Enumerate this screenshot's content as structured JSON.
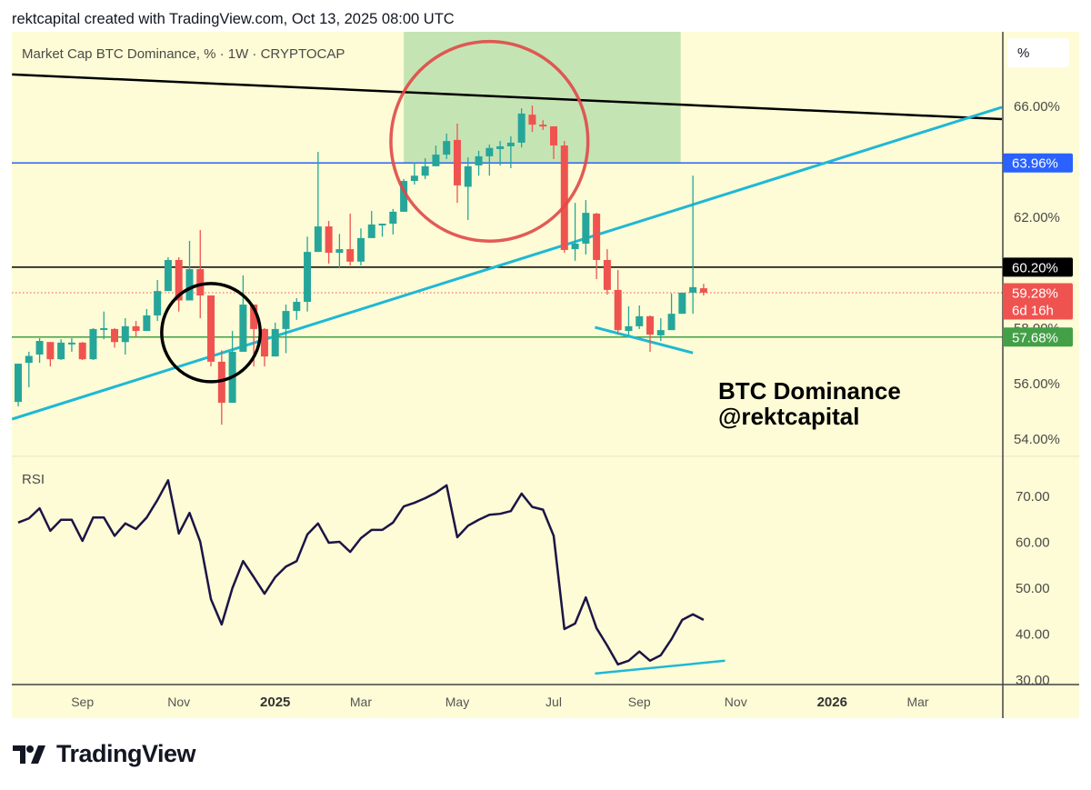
{
  "header": {
    "caption": "rektcapital created with TradingView.com, Oct 13, 2025 08:00 UTC"
  },
  "chart_title": "Market Cap BTC Dominance, % · 1W · CRYPTOCAP",
  "scale_mode_button": "%",
  "annotation": {
    "line1": "BTC Dominance",
    "line2": "@rektcapital"
  },
  "logo": {
    "text": "TradingView"
  },
  "colors": {
    "background": "#fdfcd6",
    "up": "#26a69a",
    "down": "#ef5350",
    "rsi_line": "#1c1446",
    "trendline_cyan": "#1fb8d4",
    "highlight_box": "#c5e4b4",
    "circle_red": "#e04848",
    "circle_black": "#000000",
    "level_blue": "#2962ff",
    "level_black": "#000000",
    "level_green": "#43a047"
  },
  "chart_data": [
    {
      "type": "candlestick",
      "title": "Market Cap BTC Dominance, % · 1W · CRYPTOCAP",
      "interval": "1W",
      "ylabel": "%",
      "ylim": [
        53.4,
        67.6
      ],
      "y_ticks": [
        "66.00%",
        "62.00%",
        "58.00%",
        "56.00%",
        "54.00%"
      ],
      "y_tick_values": [
        66,
        62,
        58,
        56,
        54
      ],
      "x_ticks": [
        {
          "date": "2024-09-02",
          "label": "Sep",
          "bold": false
        },
        {
          "date": "2024-11-04",
          "label": "Nov",
          "bold": false
        },
        {
          "date": "2025-01-06",
          "label": "2025",
          "bold": true
        },
        {
          "date": "2025-03-03",
          "label": "Mar",
          "bold": false
        },
        {
          "date": "2025-05-05",
          "label": "May",
          "bold": false
        },
        {
          "date": "2025-07-07",
          "label": "Jul",
          "bold": false
        },
        {
          "date": "2025-09-01",
          "label": "Sep",
          "bold": false
        },
        {
          "date": "2025-11-03",
          "label": "Nov",
          "bold": false
        },
        {
          "date": "2026-01-05",
          "label": "2026",
          "bold": true
        },
        {
          "date": "2026-03-02",
          "label": "Mar",
          "bold": false
        }
      ],
      "ohlc_columns": [
        "date",
        "open",
        "high",
        "low",
        "close"
      ],
      "ohlc": [
        [
          "2024-07-22",
          55.34,
          56.72,
          55.18,
          56.72
        ],
        [
          "2024-07-29",
          56.75,
          57.15,
          55.87,
          57.0
        ],
        [
          "2024-08-05",
          57.05,
          57.64,
          56.75,
          57.54
        ],
        [
          "2024-08-12",
          57.5,
          57.5,
          56.62,
          56.88
        ],
        [
          "2024-08-19",
          56.88,
          57.6,
          56.85,
          57.48
        ],
        [
          "2024-08-26",
          57.45,
          57.64,
          57.15,
          57.48
        ],
        [
          "2024-09-02",
          57.48,
          57.5,
          56.85,
          56.88
        ],
        [
          "2024-09-09",
          56.88,
          58.0,
          56.85,
          57.97
        ],
        [
          "2024-09-16",
          57.98,
          58.6,
          57.6,
          58.0
        ],
        [
          "2024-09-23",
          57.97,
          58.0,
          57.3,
          57.5
        ],
        [
          "2024-09-30",
          57.5,
          58.36,
          57.05,
          58.07
        ],
        [
          "2024-10-07",
          58.07,
          58.26,
          57.7,
          57.9
        ],
        [
          "2024-10-14",
          57.9,
          58.69,
          57.9,
          58.46
        ],
        [
          "2024-10-21",
          58.46,
          59.74,
          58.26,
          59.34
        ],
        [
          "2024-10-28",
          59.34,
          60.56,
          59.34,
          60.46
        ],
        [
          "2024-11-04",
          60.46,
          60.56,
          58.6,
          59.0
        ],
        [
          "2024-11-11",
          59.0,
          61.15,
          59.0,
          60.13
        ],
        [
          "2024-11-18",
          60.13,
          61.54,
          58.36,
          59.18
        ],
        [
          "2024-11-25",
          59.18,
          59.18,
          56.62,
          56.79
        ],
        [
          "2024-12-02",
          56.79,
          57.2,
          54.52,
          55.31
        ],
        [
          "2024-12-09",
          55.31,
          57.9,
          55.31,
          57.15
        ],
        [
          "2024-12-16",
          57.15,
          59.9,
          57.15,
          58.85
        ],
        [
          "2024-12-23",
          58.85,
          58.85,
          56.62,
          57.97
        ],
        [
          "2024-12-30",
          57.97,
          58.0,
          56.62,
          56.98
        ],
        [
          "2025-01-06",
          56.98,
          58.2,
          56.98,
          57.97
        ],
        [
          "2025-01-13",
          57.97,
          58.85,
          57.1,
          58.62
        ],
        [
          "2025-01-20",
          58.62,
          59.08,
          58.3,
          58.95
        ],
        [
          "2025-01-27",
          58.95,
          61.3,
          58.6,
          60.75
        ],
        [
          "2025-02-03",
          60.75,
          64.36,
          60.75,
          61.67
        ],
        [
          "2025-02-10",
          61.67,
          61.87,
          60.33,
          60.72
        ],
        [
          "2025-02-17",
          60.72,
          61.4,
          60.16,
          60.85
        ],
        [
          "2025-02-24",
          60.85,
          62.13,
          60.26,
          60.4
        ],
        [
          "2025-03-03",
          60.4,
          61.6,
          60.26,
          61.25
        ],
        [
          "2025-03-10",
          61.25,
          62.23,
          61.25,
          61.74
        ],
        [
          "2025-03-17",
          61.74,
          61.77,
          61.3,
          61.77
        ],
        [
          "2025-03-24",
          61.77,
          62.3,
          61.38,
          62.2
        ],
        [
          "2025-03-31",
          62.2,
          63.38,
          62.2,
          63.31
        ],
        [
          "2025-04-07",
          63.31,
          63.97,
          63.18,
          63.5
        ],
        [
          "2025-04-14",
          63.5,
          64.13,
          63.38,
          63.84
        ],
        [
          "2025-04-21",
          63.84,
          64.59,
          63.84,
          64.26
        ],
        [
          "2025-04-28",
          64.26,
          65.02,
          64.1,
          64.75
        ],
        [
          "2025-05-05",
          64.79,
          65.38,
          62.52,
          63.15
        ],
        [
          "2025-05-12",
          63.1,
          64.16,
          61.9,
          63.84
        ],
        [
          "2025-05-19",
          63.87,
          64.4,
          63.5,
          64.2
        ],
        [
          "2025-05-26",
          64.2,
          64.62,
          63.5,
          64.5
        ],
        [
          "2025-06-02",
          64.46,
          64.75,
          63.87,
          64.56
        ],
        [
          "2025-06-09",
          64.56,
          64.92,
          63.77,
          64.69
        ],
        [
          "2025-06-16",
          64.69,
          65.93,
          64.52,
          65.74
        ],
        [
          "2025-06-23",
          65.7,
          66.03,
          65.08,
          65.34
        ],
        [
          "2025-06-30",
          65.34,
          65.5,
          65.15,
          65.28
        ],
        [
          "2025-07-07",
          65.28,
          65.28,
          64.1,
          64.59
        ],
        [
          "2025-07-14",
          64.59,
          64.75,
          60.72,
          60.82
        ],
        [
          "2025-07-21",
          60.85,
          62.52,
          60.43,
          61.05
        ],
        [
          "2025-07-28",
          61.05,
          62.62,
          60.66,
          62.16
        ],
        [
          "2025-08-04",
          62.13,
          62.16,
          59.77,
          60.46
        ],
        [
          "2025-08-11",
          60.46,
          60.85,
          59.21,
          59.38
        ],
        [
          "2025-08-18",
          59.38,
          60.1,
          57.77,
          57.93
        ],
        [
          "2025-08-25",
          57.9,
          58.79,
          57.7,
          58.07
        ],
        [
          "2025-09-01",
          58.07,
          58.82,
          57.97,
          58.43
        ],
        [
          "2025-09-08",
          58.43,
          58.46,
          57.15,
          57.77
        ],
        [
          "2025-09-15",
          57.74,
          58.36,
          57.54,
          57.93
        ],
        [
          "2025-09-22",
          57.93,
          59.25,
          57.93,
          58.52
        ],
        [
          "2025-09-29",
          58.52,
          59.28,
          58.52,
          59.28
        ],
        [
          "2025-10-06",
          59.28,
          63.5,
          58.52,
          59.48
        ],
        [
          "2025-10-13",
          59.44,
          59.6,
          59.18,
          59.28
        ]
      ],
      "price_badges": [
        {
          "value": 63.96,
          "label": "63.96%",
          "color": "#2962ff"
        },
        {
          "value": 60.2,
          "label": "60.20%",
          "color": "#000000"
        },
        {
          "value": 59.28,
          "label": "59.28%",
          "sublabel": "6d 16h",
          "color": "#ef5350"
        },
        {
          "value": 57.68,
          "label": "57.68%",
          "color": "#43a047"
        }
      ],
      "horizontal_levels": [
        {
          "value": 63.96,
          "color": "#2962ff",
          "style": "solid"
        },
        {
          "value": 60.2,
          "color": "#000000",
          "style": "solid"
        },
        {
          "value": 59.28,
          "color": "#ef5350",
          "style": "dotted"
        },
        {
          "value": 57.68,
          "color": "#43a047",
          "style": "solid"
        }
      ],
      "trendlines": [
        {
          "color": "#000000",
          "from": {
            "date": "2024-07-18",
            "value": 67.15
          },
          "to": {
            "date": "2026-04-26",
            "value": 65.54
          }
        },
        {
          "color": "#1fb8d4",
          "from": {
            "date": "2024-07-18",
            "value": 54.72
          },
          "to": {
            "date": "2026-04-26",
            "value": 65.97
          }
        },
        {
          "color": "#1fb8d4",
          "from": {
            "date": "2025-08-03",
            "value": 58.03
          },
          "to": {
            "date": "2025-10-06",
            "value": 57.11
          }
        }
      ],
      "highlight_box": {
        "from_date": "2025-03-31",
        "to_date": "2025-09-28",
        "bottom": 63.96,
        "color": "#c5e4b4"
      },
      "circles": [
        {
          "center_date": "2025-05-26",
          "center_value": 64.74,
          "radius_weeks": 9.2,
          "radius_value": 3.6,
          "color": "#e04848"
        },
        {
          "center_date": "2024-11-25",
          "center_value": 57.84,
          "radius_weeks": 4.6,
          "radius_value": 1.77,
          "color": "#000000"
        }
      ]
    },
    {
      "type": "line",
      "title": "RSI",
      "ylim": [
        29.3,
        78.5
      ],
      "y_ticks": [
        "70.00",
        "60.00",
        "50.00",
        "40.00",
        "30.00"
      ],
      "y_tick_values": [
        70,
        60,
        50,
        40,
        30
      ],
      "values": [
        64.3,
        65.2,
        67.4,
        62.5,
        64.9,
        64.9,
        60.3,
        65.4,
        65.4,
        61.4,
        64.1,
        62.9,
        65.4,
        69.2,
        73.5,
        61.9,
        66.4,
        60.1,
        47.6,
        42.1,
        50.0,
        55.9,
        52.4,
        48.8,
        52.4,
        54.7,
        55.9,
        61.7,
        64.1,
        59.9,
        60.1,
        57.9,
        60.9,
        62.7,
        62.7,
        64.3,
        67.8,
        68.6,
        69.6,
        70.8,
        72.4,
        61.1,
        63.6,
        64.9,
        66.0,
        66.2,
        66.8,
        70.6,
        67.7,
        67.1,
        61.4,
        41.1,
        42.3,
        48.0,
        41.3,
        37.5,
        33.4,
        34.2,
        36.2,
        34.2,
        35.4,
        38.9,
        43.1,
        44.3,
        43.1
      ],
      "trendline": {
        "color": "#1fb8d4",
        "from": {
          "date": "2025-08-03",
          "value": 31.4
        },
        "to": {
          "date": "2025-10-27",
          "value": 34.2
        }
      }
    }
  ]
}
